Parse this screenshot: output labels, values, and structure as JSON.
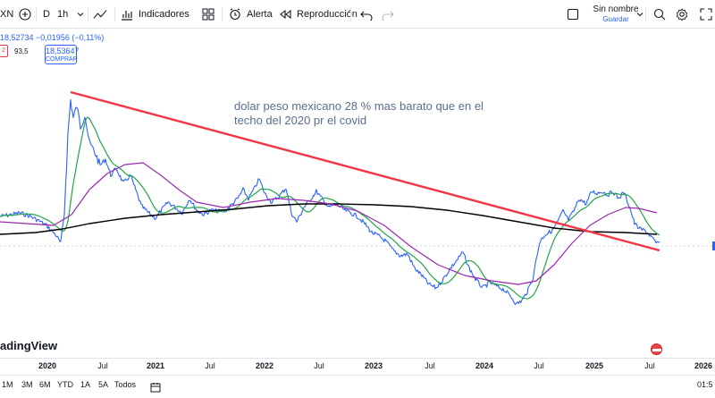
{
  "toolbar": {
    "symbol_fragment": "XN",
    "add_symbol_icon": "plus-circle-icon",
    "interval_d": "D",
    "interval_1h": "1h",
    "indicators_label": "Indicadores",
    "alert_label": "Alerta",
    "replay_label": "Reproducción",
    "save_name": "Sin nombre",
    "save_sub": "Guardar"
  },
  "legend": {
    "price_change": "18,52734 −0,01956 (−0,11%)",
    "sell_price_fragment": "2",
    "spread": "93,5",
    "buy_price": "18,53647",
    "buy_label": "COMPRAR"
  },
  "annotation": "dolar peso mexicano 28 % mas barato que en el techo del 2020 pr el covid",
  "branding": "adingView",
  "time_axis": {
    "ticks": [
      {
        "label": "2020",
        "year": true
      },
      {
        "label": "Jul",
        "year": false
      },
      {
        "label": "2021",
        "year": true
      },
      {
        "label": "Jul",
        "year": false
      },
      {
        "label": "2022",
        "year": true
      },
      {
        "label": "Jul",
        "year": false
      },
      {
        "label": "2023",
        "year": true
      },
      {
        "label": "Jul",
        "year": false
      },
      {
        "label": "2024",
        "year": true
      },
      {
        "label": "Jul",
        "year": false
      },
      {
        "label": "2025",
        "year": true
      },
      {
        "label": "Jul",
        "year": false
      },
      {
        "label": "2026",
        "year": true
      }
    ]
  },
  "ranges": [
    "1M",
    "3M",
    "6M",
    "YTD",
    "1A",
    "5A",
    "Todos"
  ],
  "clock": "01:5",
  "colors": {
    "price_line": "#2962ff",
    "trend_line": "#f23645",
    "ma_fast": "#22a34a",
    "ma_mid": "#9c27b0",
    "ma_slow": "#000000"
  }
}
